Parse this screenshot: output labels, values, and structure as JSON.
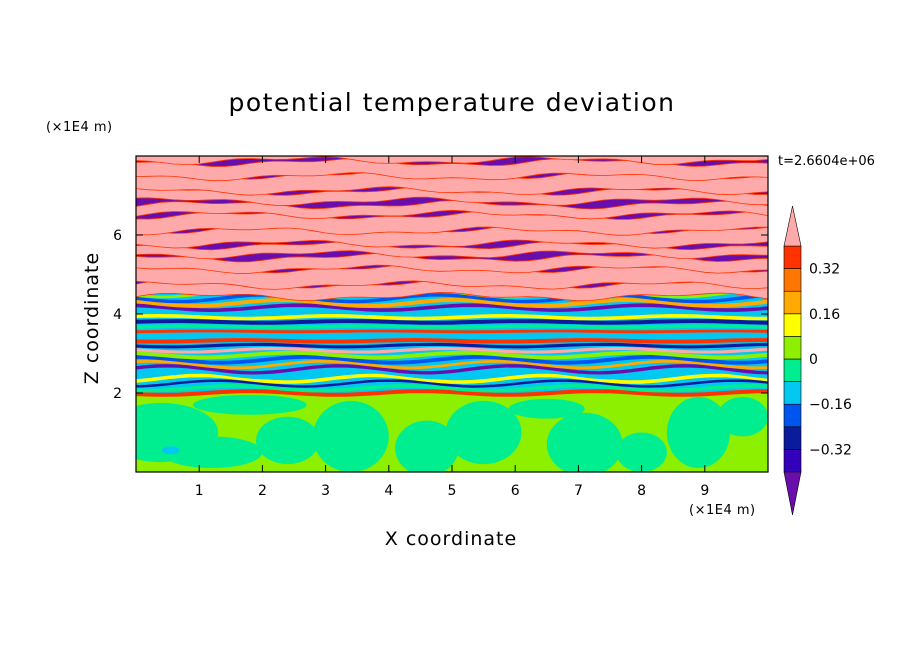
{
  "chart_data": {
    "type": "heatmap",
    "title": "potential temperature deviation",
    "xlabel": "X coordinate",
    "ylabel": "Z coordinate",
    "x_unit": "(×1E4 m)",
    "y_unit": "(×1E4 m)",
    "time_label": "t=2.6604e+06",
    "xlim": [
      0,
      10
    ],
    "ylim": [
      0,
      8
    ],
    "x_ticks": [
      1,
      2,
      3,
      4,
      5,
      6,
      7,
      8,
      9
    ],
    "y_ticks": [
      2,
      4,
      6
    ],
    "colorbar": {
      "levels": [
        -0.48,
        -0.4,
        -0.32,
        -0.24,
        -0.16,
        -0.08,
        0,
        0.08,
        0.16,
        0.24,
        0.32,
        0.4,
        0.48
      ],
      "tick_labels": [
        "0.32",
        "0.16",
        "0",
        "−0.16",
        "−0.32"
      ],
      "tick_values": [
        0.32,
        0.16,
        0,
        -0.16,
        -0.32
      ],
      "colors": [
        "#6a0dad",
        "#3300bb",
        "#0a1c9c",
        "#0055ee",
        "#00c8f0",
        "#00ee90",
        "#8cf000",
        "#ffff00",
        "#ffaa00",
        "#ff7700",
        "#ff3300",
        "#ff2222",
        "#ffaaaa"
      ]
    }
  }
}
